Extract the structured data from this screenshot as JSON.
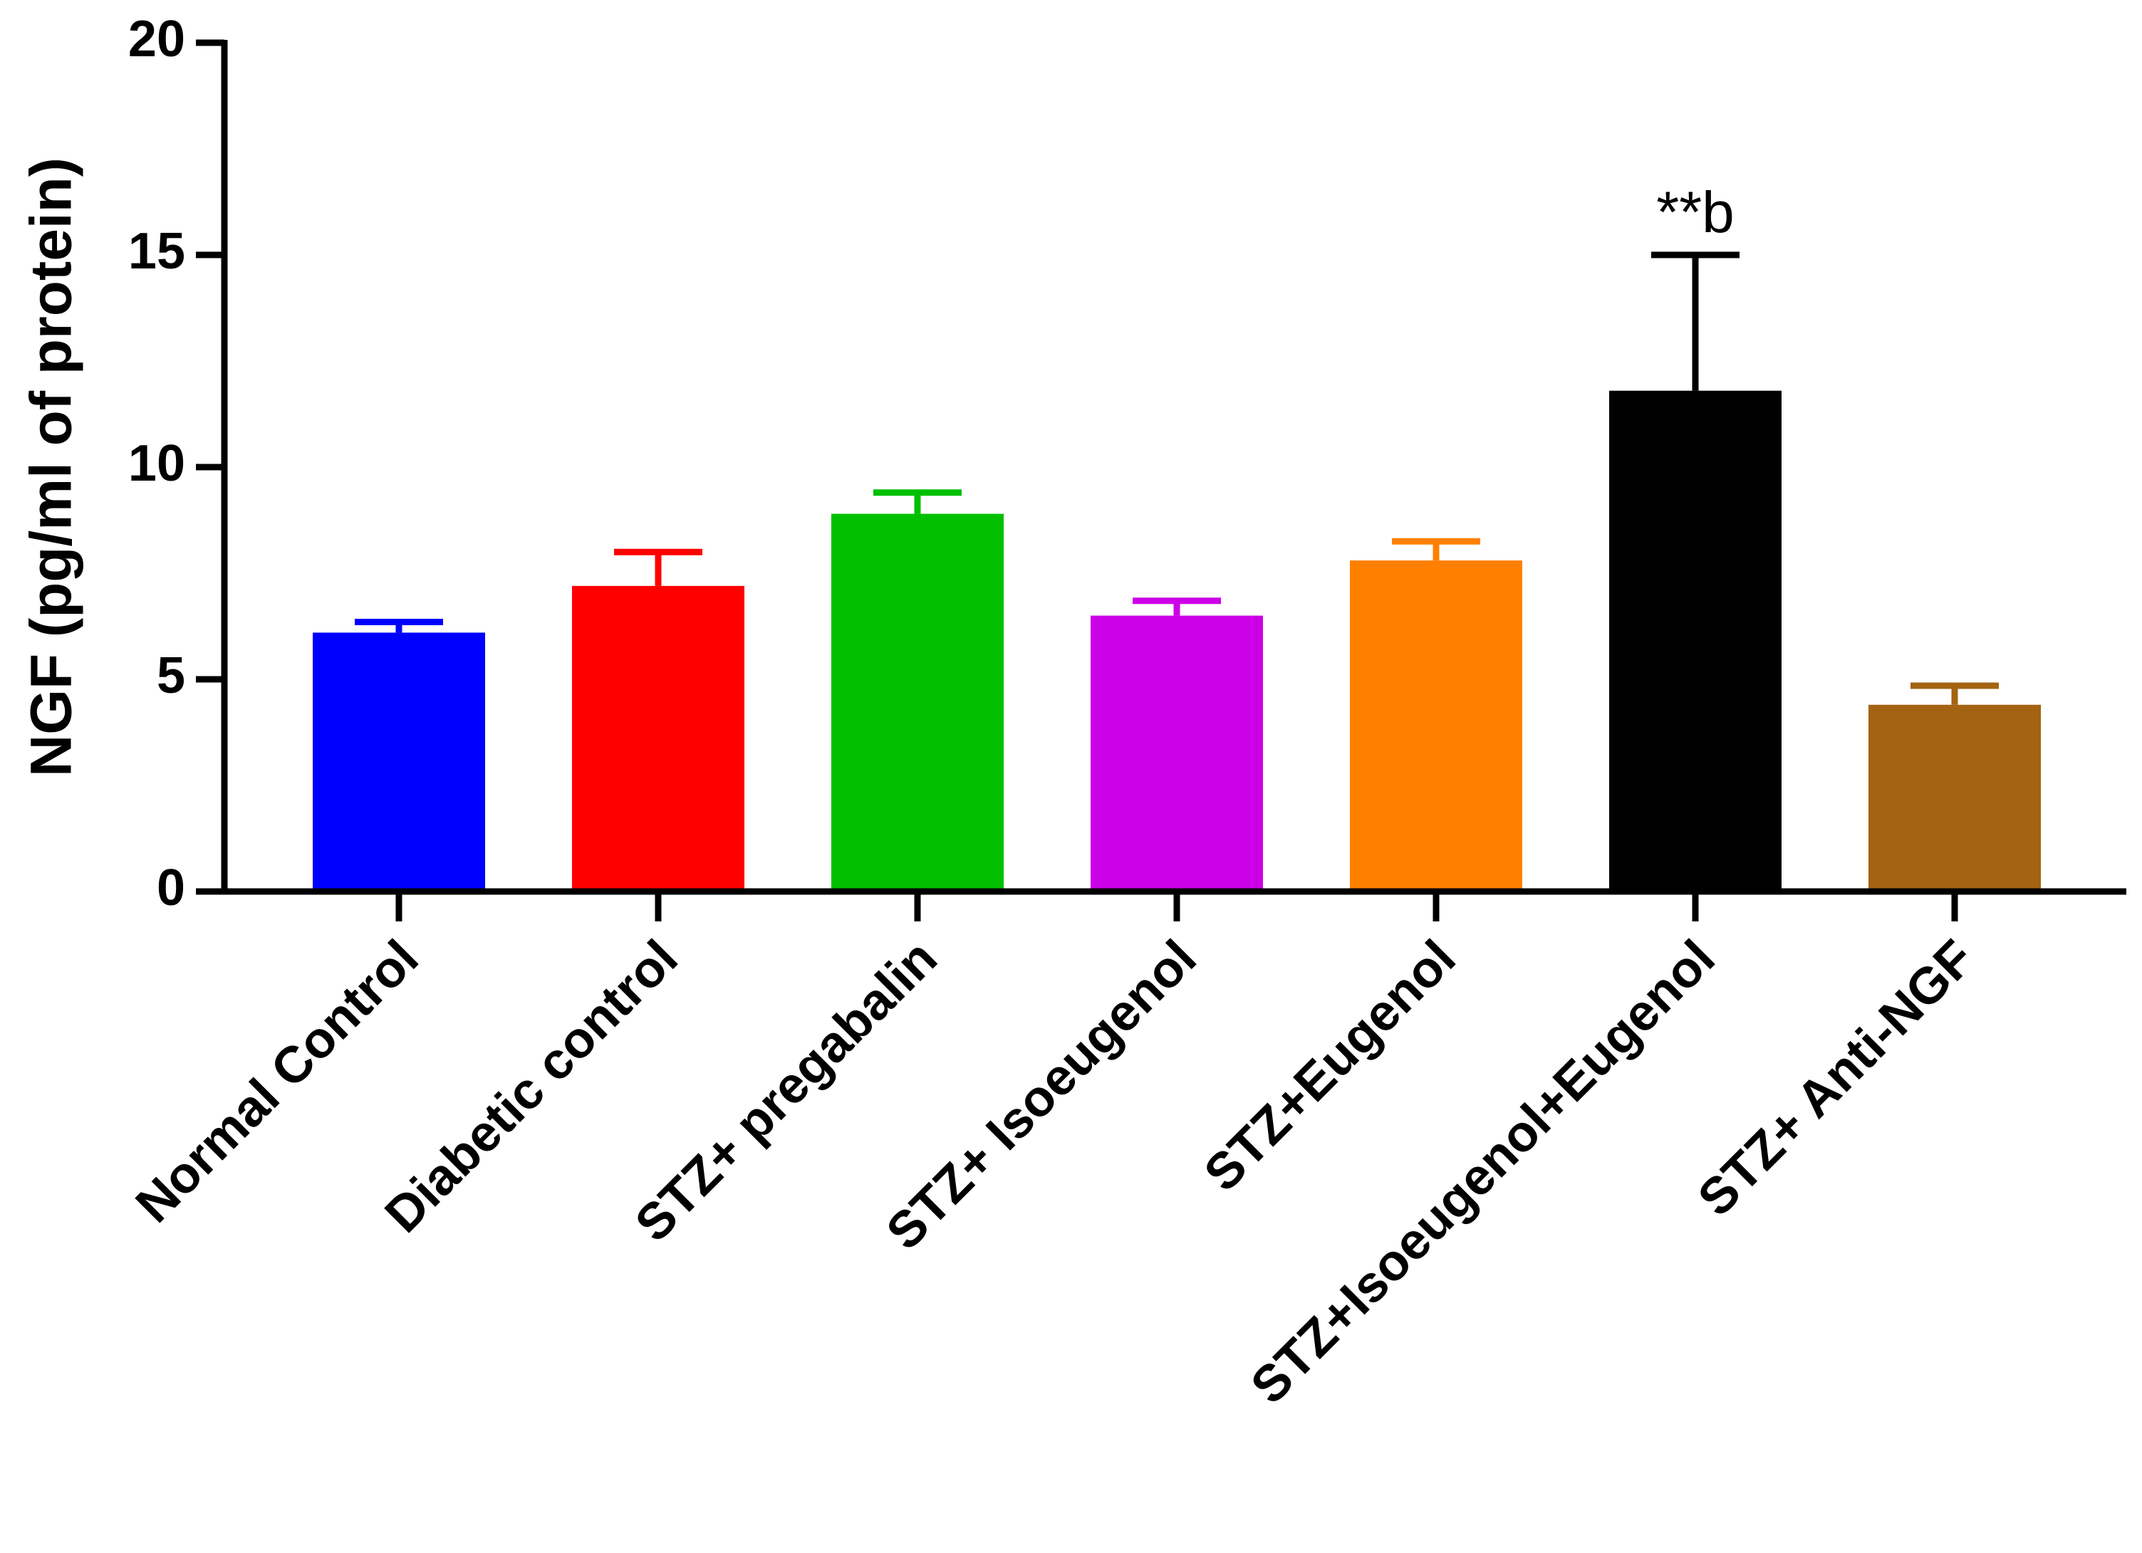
{
  "chart_data": {
    "type": "bar",
    "title": "",
    "xlabel": "",
    "ylabel": "NGF (pg/ml of protein)",
    "ylim": [
      0,
      20
    ],
    "yticks": [
      0,
      5,
      10,
      15,
      20
    ],
    "grid": false,
    "categories": [
      "Normal Control",
      "Diabetic control",
      "STZ+ pregabalin",
      "STZ+ Isoeugenol",
      "STZ+Eugenol",
      "STZ+Isoeugenol+Eugenol",
      "STZ+ Anti-NGF"
    ],
    "values": [
      6.1,
      7.2,
      8.9,
      6.5,
      7.8,
      11.8,
      4.4
    ],
    "error_upper": [
      0.25,
      0.8,
      0.5,
      0.35,
      0.45,
      3.2,
      0.45
    ],
    "colors": [
      "#0000ff",
      "#ff0000",
      "#00c000",
      "#cc00e6",
      "#ff8000",
      "#000000",
      "#a36312"
    ],
    "annotations": [
      {
        "category_index": 5,
        "text": "**b"
      }
    ]
  }
}
